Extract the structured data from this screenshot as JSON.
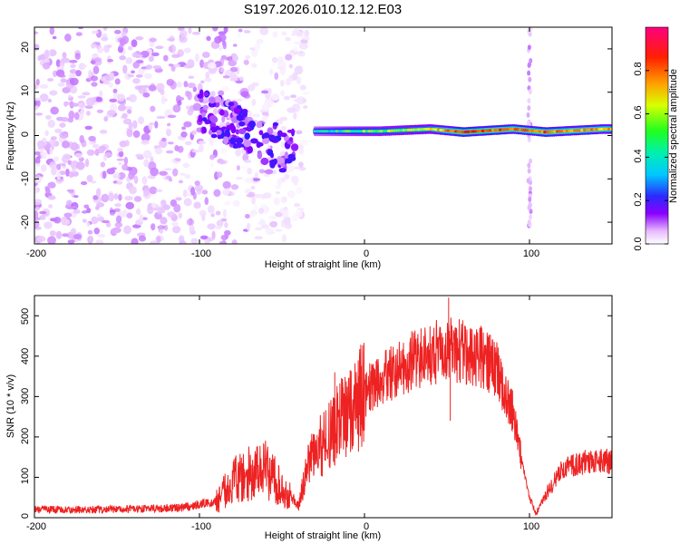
{
  "figure": {
    "title": "S197.2026.010.12.12.E03"
  },
  "chart_data": [
    {
      "type": "heatmap",
      "xlabel": "Height of straight line (km)",
      "ylabel": "Frequency (Hz)",
      "xlim": [
        -200,
        150
      ],
      "ylim": [
        -25,
        25
      ],
      "xticks": [
        -200,
        -100,
        0,
        100
      ],
      "yticks": [
        -20,
        -10,
        0,
        10,
        20
      ],
      "xtick_labels": [
        "-200",
        "-100",
        "0",
        "100"
      ],
      "ytick_labels": [
        "-20",
        "-10",
        "0",
        "10",
        "20"
      ],
      "colorbar": {
        "label": "Normalized spectral amplitude",
        "range": [
          0.0,
          1.0
        ],
        "ticks": [
          0.0,
          0.2,
          0.4,
          0.6,
          0.8
        ],
        "tick_labels": [
          "0.0",
          "0.2",
          "0.4",
          "0.6",
          "0.8"
        ],
        "colormap": [
          "#ffffff",
          "#e0b0ff",
          "#8a00ff",
          "#2020ff",
          "#00c8ff",
          "#00ff80",
          "#ffff00",
          "#ff8000",
          "#ff0000",
          "#ff0080"
        ]
      },
      "ridge_points": [
        {
          "x": -90,
          "y": 4,
          "v": 0.3
        },
        {
          "x": -75,
          "y": 1,
          "v": 0.35
        },
        {
          "x": -60,
          "y": -3,
          "v": 0.25
        },
        {
          "x": -45,
          "y": -1,
          "v": 0.3
        },
        {
          "x": -30,
          "y": 1,
          "v": 0.45
        },
        {
          "x": -10,
          "y": 1,
          "v": 0.55
        },
        {
          "x": 10,
          "y": 1,
          "v": 0.6
        },
        {
          "x": 40,
          "y": 1.5,
          "v": 0.65
        },
        {
          "x": 60,
          "y": 0.8,
          "v": 0.85
        },
        {
          "x": 90,
          "y": 1.5,
          "v": 0.8
        },
        {
          "x": 110,
          "y": 0.8,
          "v": 0.8
        },
        {
          "x": 145,
          "y": 1.5,
          "v": 0.75
        }
      ],
      "noise_region": {
        "x_start": -200,
        "x_end": -45
      },
      "vertical_streak_x": 100
    },
    {
      "type": "line",
      "xlabel": "Height of straight line (km)",
      "ylabel": "SNR (10 * v/v)",
      "xlim": [
        -200,
        150
      ],
      "ylim": [
        0,
        550
      ],
      "xticks": [
        -200,
        -100,
        0,
        100
      ],
      "yticks": [
        0,
        100,
        200,
        300,
        400,
        500
      ],
      "xtick_labels": [
        "-200",
        "-100",
        "0",
        "100"
      ],
      "ytick_labels": [
        "0",
        "100",
        "200",
        "300",
        "400",
        "500"
      ],
      "color": "#ee2222",
      "series": [
        {
          "name": "SNR",
          "x": [
            -200,
            -150,
            -110,
            -90,
            -80,
            -70,
            -60,
            -50,
            -40,
            -35,
            -30,
            -20,
            -10,
            0,
            10,
            30,
            50,
            60,
            70,
            80,
            90,
            95,
            100,
            104,
            110,
            120,
            135,
            150
          ],
          "y": [
            20,
            20,
            25,
            40,
            90,
            110,
            120,
            80,
            30,
            120,
            160,
            210,
            260,
            310,
            340,
            390,
            420,
            410,
            400,
            370,
            260,
            150,
            50,
            10,
            60,
            120,
            140,
            140
          ]
        }
      ],
      "spikes": [
        {
          "x": -18,
          "y": 360
        },
        {
          "x": 51,
          "y": 545
        },
        {
          "x": 52,
          "y": 240
        }
      ]
    }
  ]
}
